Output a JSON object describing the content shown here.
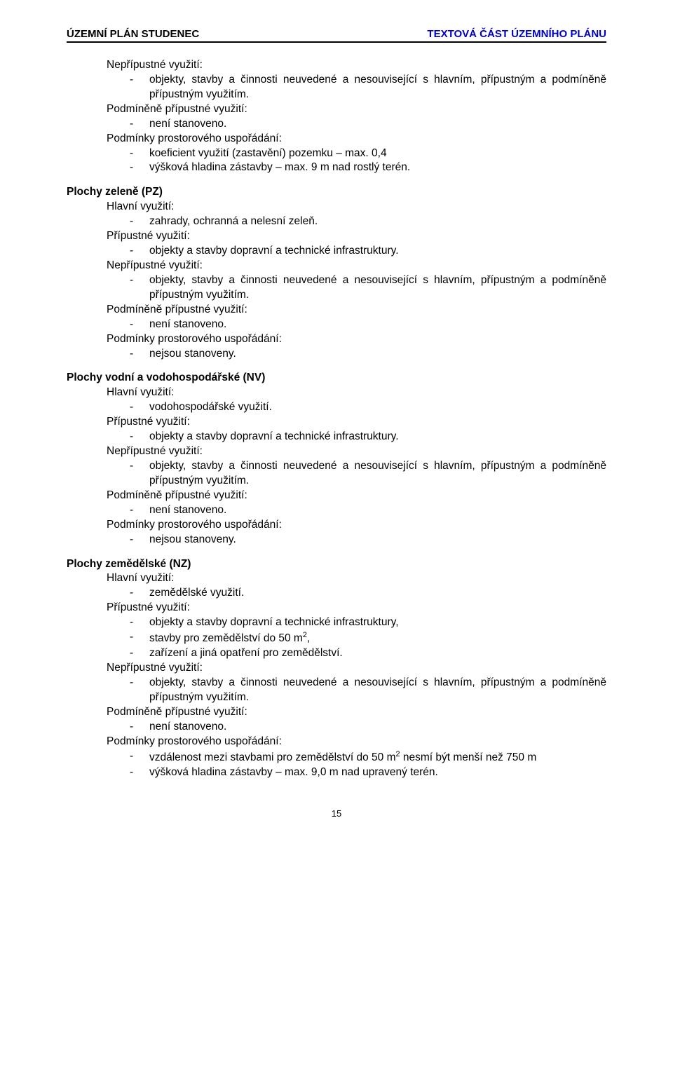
{
  "header": {
    "left": "ÚZEMNÍ PLÁN STUDENEC",
    "right": "TEXTOVÁ ČÁST ÚZEMNÍHO PLÁNU"
  },
  "blocks": [
    {
      "type": "sub",
      "text": "Nepřípustné využití:"
    },
    {
      "type": "bullet",
      "text": "objekty, stavby a činnosti neuvedené a nesouvisející s hlavním, přípustným a podmíněně přípustným využitím.",
      "justify": true
    },
    {
      "type": "sub",
      "text": "Podmíněně přípustné využití:"
    },
    {
      "type": "bullet",
      "text": "není stanoveno."
    },
    {
      "type": "sub",
      "text": "Podmínky prostorového uspořádání:"
    },
    {
      "type": "bullet",
      "text": "koeficient využití (zastavění) pozemku – max. 0,4"
    },
    {
      "type": "bullet",
      "text": "výšková hladina zástavby – max. 9 m nad rostlý terén."
    },
    {
      "type": "title",
      "text": "Plochy zeleně (PZ)"
    },
    {
      "type": "sub",
      "text": "Hlavní využití:"
    },
    {
      "type": "bullet",
      "text": "zahrady, ochranná a nelesní zeleň."
    },
    {
      "type": "sub",
      "text": "Přípustné využití:"
    },
    {
      "type": "bullet",
      "text": "objekty a stavby dopravní a technické infrastruktury."
    },
    {
      "type": "sub",
      "text": "Nepřípustné využití:"
    },
    {
      "type": "bullet",
      "text": "objekty, stavby a činnosti neuvedené a nesouvisející s hlavním, přípustným a podmíněně přípustným využitím.",
      "justify": true
    },
    {
      "type": "sub",
      "text": "Podmíněně přípustné využití:"
    },
    {
      "type": "bullet",
      "text": "není stanoveno."
    },
    {
      "type": "sub",
      "text": "Podmínky prostorového uspořádání:"
    },
    {
      "type": "bullet",
      "text": "nejsou stanoveny."
    },
    {
      "type": "title",
      "text": "Plochy vodní a vodohospodářské (NV)"
    },
    {
      "type": "sub",
      "text": "Hlavní využití:"
    },
    {
      "type": "bullet",
      "text": "vodohospodářské využití."
    },
    {
      "type": "sub",
      "text": "Přípustné využití:"
    },
    {
      "type": "bullet",
      "text": "objekty a stavby dopravní a technické infrastruktury."
    },
    {
      "type": "sub",
      "text": "Nepřípustné využití:"
    },
    {
      "type": "bullet",
      "text": "objekty, stavby a činnosti neuvedené a nesouvisející s hlavním, přípustným a podmíněně přípustným využitím.",
      "justify": true
    },
    {
      "type": "sub",
      "text": "Podmíněně přípustné využití:"
    },
    {
      "type": "bullet",
      "text": "není stanoveno."
    },
    {
      "type": "sub",
      "text": "Podmínky prostorového uspořádání:"
    },
    {
      "type": "bullet",
      "text": "nejsou stanoveny."
    },
    {
      "type": "title",
      "text": "Plochy zemědělské (NZ)"
    },
    {
      "type": "sub",
      "text": "Hlavní využití:"
    },
    {
      "type": "bullet",
      "text": "zemědělské využití."
    },
    {
      "type": "sub",
      "text": "Přípustné využití:"
    },
    {
      "type": "bullet",
      "text": "objekty a stavby dopravní a technické infrastruktury,"
    },
    {
      "type": "bullet",
      "html": "stavby pro zemědělství do 50 m<sup>2</sup>,"
    },
    {
      "type": "bullet",
      "text": "zařízení a jiná opatření pro zemědělství."
    },
    {
      "type": "sub",
      "text": "Nepřípustné využití:"
    },
    {
      "type": "bullet",
      "text": "objekty, stavby a činnosti neuvedené a nesouvisející s hlavním, přípustným a podmíněně přípustným využitím.",
      "justify": true
    },
    {
      "type": "sub",
      "text": "Podmíněně přípustné využití:"
    },
    {
      "type": "bullet",
      "text": "není stanoveno."
    },
    {
      "type": "sub",
      "text": "Podmínky prostorového uspořádání:"
    },
    {
      "type": "bullet",
      "html": "vzdálenost mezi stavbami pro zemědělství do 50 m<sup>2</sup> nesmí být menší než 750 m",
      "justify": true
    },
    {
      "type": "bullet",
      "text": "výšková hladina zástavby – max. 9,0 m nad upravený terén."
    }
  ],
  "page_number": "15"
}
